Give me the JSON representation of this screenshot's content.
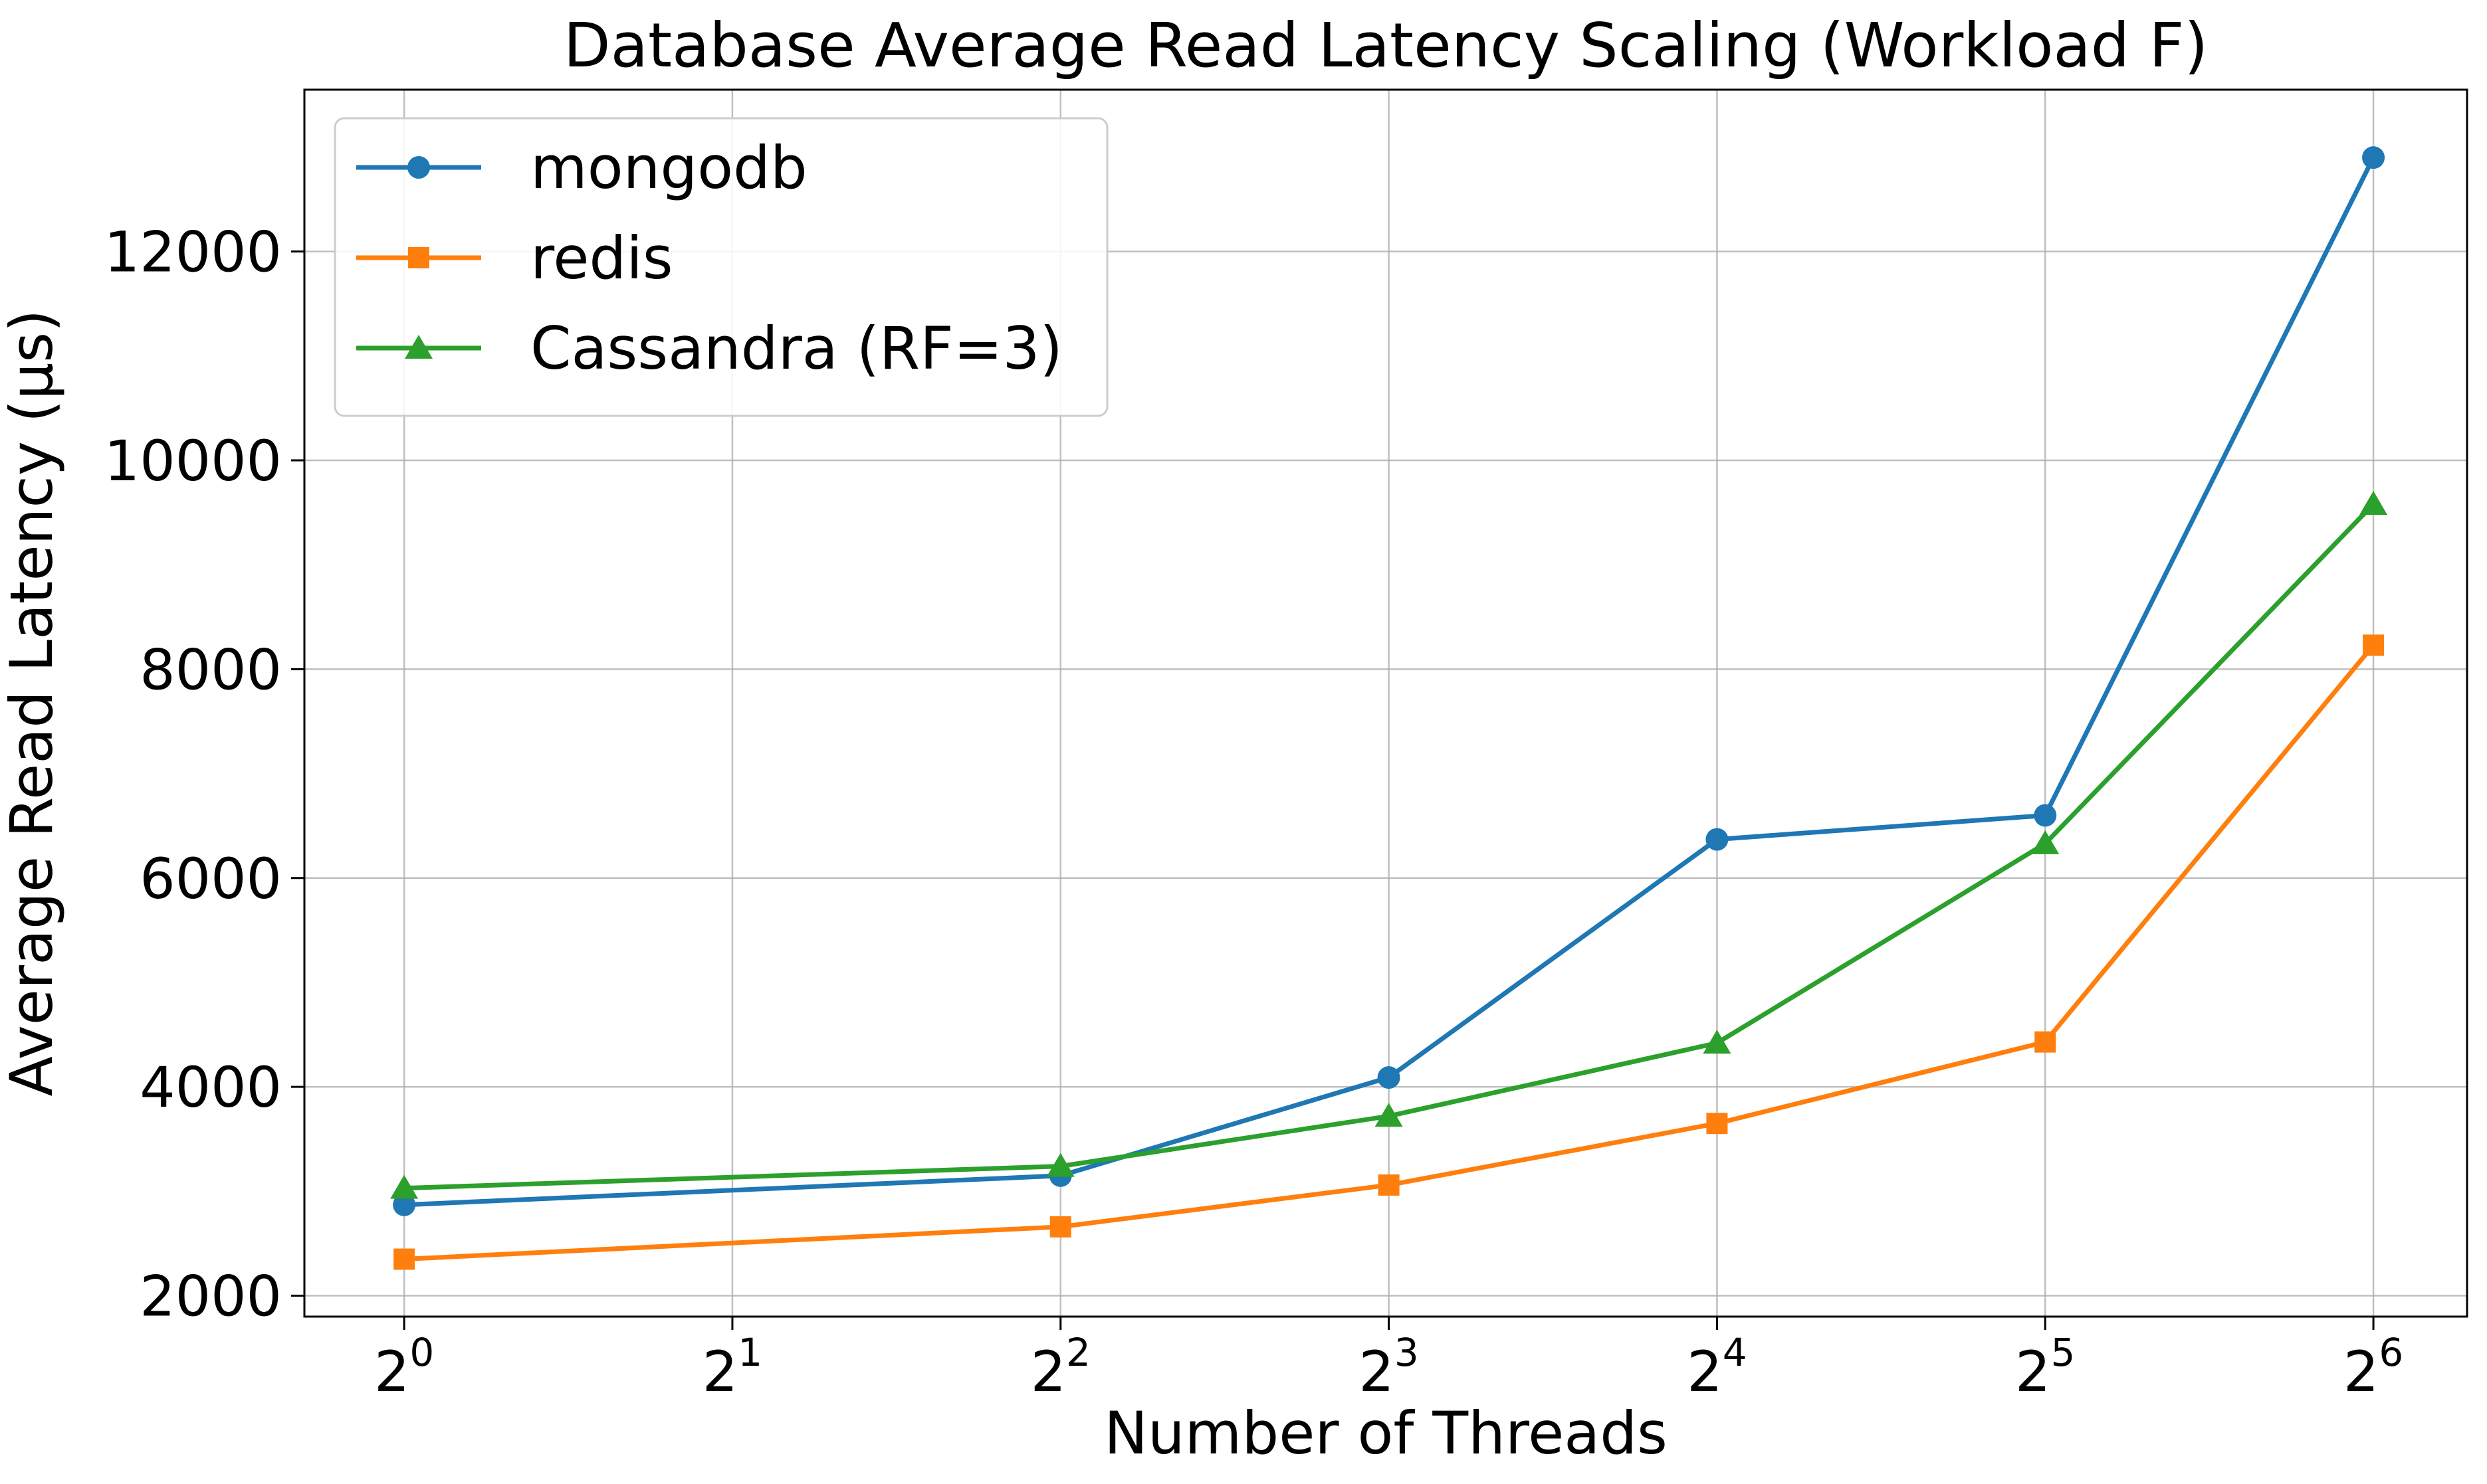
{
  "chart_data": {
    "type": "line",
    "title": "Database Average Read Latency Scaling (Workload F)",
    "xlabel": "Number of Threads",
    "ylabel": "Average Read Latency (µs)",
    "x_scale": "log2",
    "x": [
      1,
      4,
      8,
      16,
      32,
      64
    ],
    "x_ticks": [
      {
        "value": 1,
        "base": "2",
        "exp": "0"
      },
      {
        "value": 2,
        "base": "2",
        "exp": "1"
      },
      {
        "value": 4,
        "base": "2",
        "exp": "2"
      },
      {
        "value": 8,
        "base": "2",
        "exp": "3"
      },
      {
        "value": 16,
        "base": "2",
        "exp": "4"
      },
      {
        "value": 32,
        "base": "2",
        "exp": "5"
      },
      {
        "value": 64,
        "base": "2",
        "exp": "6"
      }
    ],
    "y_ticks": [
      {
        "value": 2000,
        "label": "2000"
      },
      {
        "value": 4000,
        "label": "4000"
      },
      {
        "value": 6000,
        "label": "6000"
      },
      {
        "value": 8000,
        "label": "8000"
      },
      {
        "value": 10000,
        "label": "10000"
      },
      {
        "value": 12000,
        "label": "12000"
      }
    ],
    "xlim": [
      0.81,
      78
    ],
    "ylim": [
      1800,
      13550
    ],
    "grid": true,
    "legend_position": "top-left",
    "series": [
      {
        "name": "mongodb",
        "color": "#1f77b4",
        "marker": "circle",
        "values": [
          2870,
          3150,
          4090,
          6370,
          6600,
          12900
        ]
      },
      {
        "name": "redis",
        "color": "#ff7f0e",
        "marker": "square",
        "values": [
          2350,
          2660,
          3060,
          3650,
          4430,
          8230
        ]
      },
      {
        "name": "Cassandra (RF=3)",
        "color": "#2ca02c",
        "marker": "triangle",
        "values": [
          3030,
          3240,
          3720,
          4420,
          6330,
          9580
        ]
      }
    ]
  }
}
